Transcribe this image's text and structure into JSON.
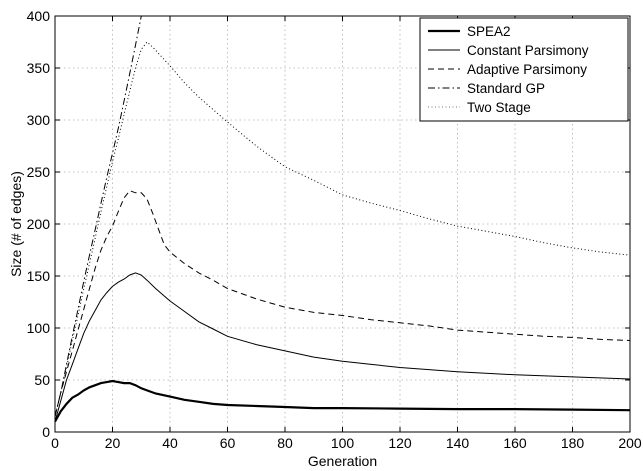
{
  "chart_data": {
    "type": "line",
    "xlabel": "Generation",
    "ylabel": "Size (# of edges)",
    "xlim": [
      0,
      200
    ],
    "ylim": [
      0,
      400
    ],
    "xticks": [
      0,
      20,
      40,
      60,
      80,
      100,
      120,
      140,
      160,
      180,
      200
    ],
    "yticks": [
      0,
      50,
      100,
      150,
      200,
      250,
      300,
      350,
      400
    ],
    "grid": true,
    "legend_position": "top-right",
    "series": [
      {
        "name": "SPEA2",
        "style": "solid-thick",
        "x": [
          0,
          2,
          4,
          6,
          8,
          10,
          12,
          14,
          16,
          18,
          20,
          22,
          24,
          26,
          28,
          30,
          32,
          35,
          40,
          45,
          50,
          55,
          60,
          70,
          80,
          90,
          100,
          120,
          140,
          160,
          180,
          200
        ],
        "y": [
          10,
          20,
          27,
          33,
          36,
          40,
          43,
          45,
          47,
          48,
          49,
          48,
          47,
          47,
          45,
          42,
          40,
          37,
          34,
          31,
          29,
          27,
          26,
          25,
          24,
          23,
          23,
          22.5,
          22,
          22,
          21.5,
          21
        ]
      },
      {
        "name": "Constant Parsimony",
        "style": "solid",
        "x": [
          0,
          2,
          4,
          6,
          8,
          10,
          12,
          14,
          16,
          18,
          20,
          22,
          24,
          26,
          28,
          30,
          32,
          35,
          40,
          45,
          50,
          55,
          60,
          70,
          80,
          90,
          100,
          110,
          120,
          140,
          160,
          180,
          200
        ],
        "y": [
          10,
          30,
          50,
          65,
          80,
          95,
          107,
          117,
          127,
          134,
          140,
          144,
          147,
          151,
          153,
          151,
          146,
          138,
          126,
          116,
          106,
          99,
          92,
          84,
          78,
          72,
          68,
          65,
          62,
          58,
          55,
          53,
          51
        ]
      },
      {
        "name": "Adaptive Parsimony",
        "style": "dashed",
        "x": [
          0,
          2,
          4,
          6,
          8,
          10,
          12,
          14,
          16,
          18,
          20,
          22,
          24,
          26,
          28,
          30,
          32,
          34,
          36,
          38,
          40,
          45,
          50,
          55,
          60,
          70,
          80,
          90,
          100,
          110,
          120,
          130,
          140,
          150,
          160,
          170,
          180,
          190,
          200
        ],
        "y": [
          15,
          38,
          58,
          78,
          98,
          118,
          138,
          158,
          175,
          188,
          198,
          212,
          225,
          232,
          230,
          230,
          224,
          210,
          195,
          180,
          173,
          162,
          153,
          146,
          138,
          128,
          120,
          115,
          112,
          108,
          105,
          102,
          98,
          96,
          94,
          92,
          91,
          89,
          88
        ]
      },
      {
        "name": "Standard GP",
        "style": "dash-dot",
        "x": [
          0,
          2,
          4,
          6,
          8,
          10,
          12,
          14,
          16,
          18,
          20,
          22,
          24,
          26,
          28,
          30
        ],
        "y": [
          15,
          38,
          65,
          92,
          118,
          145,
          170,
          195,
          220,
          245,
          268,
          292,
          318,
          345,
          372,
          400
        ]
      },
      {
        "name": "Two Stage",
        "style": "dotted",
        "x": [
          0,
          2,
          4,
          6,
          8,
          10,
          12,
          14,
          16,
          18,
          20,
          22,
          24,
          26,
          28,
          30,
          32,
          34,
          36,
          38,
          40,
          45,
          50,
          55,
          60,
          70,
          80,
          90,
          100,
          110,
          120,
          130,
          140,
          150,
          160,
          170,
          180,
          190,
          200
        ],
        "y": [
          15,
          38,
          62,
          88,
          112,
          138,
          162,
          187,
          212,
          236,
          260,
          282,
          305,
          328,
          350,
          368,
          375,
          370,
          364,
          358,
          352,
          336,
          322,
          310,
          298,
          275,
          255,
          242,
          228,
          220,
          213,
          205,
          198,
          193,
          188,
          182,
          177,
          173,
          170
        ]
      }
    ]
  }
}
